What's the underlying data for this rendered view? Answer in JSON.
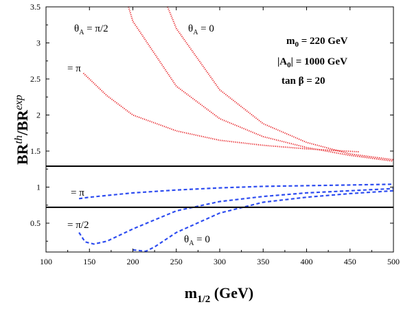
{
  "chart_data": {
    "type": "line",
    "xlabel": {
      "main": "m",
      "sub": "1/2",
      "unit": " (GeV)"
    },
    "ylabel": {
      "base1": "BR",
      "sup1": "th",
      "sep": "/",
      "base2": "BR",
      "sup2": "exp"
    },
    "xlim": [
      100,
      500
    ],
    "ylim": [
      0.1,
      3.5
    ],
    "xticks": [
      100,
      150,
      200,
      250,
      300,
      350,
      400,
      450,
      500
    ],
    "yticks": [
      0.5,
      1,
      1.5,
      2,
      2.5,
      3,
      3.5
    ],
    "hlines": [
      1.29,
      0.72
    ],
    "info": {
      "m0": {
        "sym": "m",
        "sub": "0",
        "rest": " = 220 GeV"
      },
      "a0": {
        "sym": "|A",
        "sub": "0",
        "rest": "| = 1000 GeV"
      },
      "tanb": "tan β = 20"
    },
    "annotations": {
      "red_pi2": {
        "pre": "θ",
        "sub": "A",
        "post": " = π/2"
      },
      "red_0": {
        "pre": "θ",
        "sub": "A",
        "post": " = 0"
      },
      "red_pi": "= π",
      "blue_pi": "= π",
      "blue_pi2": "= π/2",
      "blue_0": {
        "pre": "θ",
        "sub": "A",
        "post": " = 0"
      }
    },
    "series": [
      {
        "group": "upper",
        "color": "#e8262b",
        "x": [
          143,
          170,
          200,
          250,
          300,
          350,
          400,
          460
        ],
        "y": [
          2.58,
          2.27,
          2.0,
          1.78,
          1.65,
          1.58,
          1.53,
          1.49
        ]
      },
      {
        "group": "upper",
        "color": "#e8262b",
        "x": [
          195,
          200,
          250,
          300,
          350,
          400,
          450,
          500
        ],
        "y": [
          3.5,
          3.3,
          2.4,
          1.95,
          1.7,
          1.55,
          1.44,
          1.36
        ]
      },
      {
        "group": "upper",
        "color": "#e8262b",
        "x": [
          240,
          250,
          300,
          350,
          400,
          450,
          500
        ],
        "y": [
          3.5,
          3.2,
          2.35,
          1.88,
          1.62,
          1.46,
          1.38
        ]
      },
      {
        "group": "lower",
        "color": "#2d4cf0",
        "x": [
          138,
          150,
          200,
          250,
          300,
          350,
          400,
          450,
          500
        ],
        "y": [
          0.84,
          0.86,
          0.92,
          0.96,
          0.99,
          1.01,
          1.02,
          1.03,
          1.04
        ]
      },
      {
        "group": "lower",
        "color": "#2d4cf0",
        "x": [
          138,
          145,
          155,
          170,
          200,
          250,
          300,
          350,
          400,
          450,
          500
        ],
        "y": [
          0.37,
          0.24,
          0.21,
          0.25,
          0.42,
          0.67,
          0.8,
          0.87,
          0.92,
          0.95,
          0.98
        ]
      },
      {
        "group": "lower",
        "color": "#2d4cf0",
        "x": [
          200,
          215,
          225,
          250,
          300,
          350,
          400,
          450,
          500
        ],
        "y": [
          0.13,
          0.11,
          0.17,
          0.37,
          0.64,
          0.79,
          0.86,
          0.91,
          0.95
        ]
      }
    ]
  }
}
